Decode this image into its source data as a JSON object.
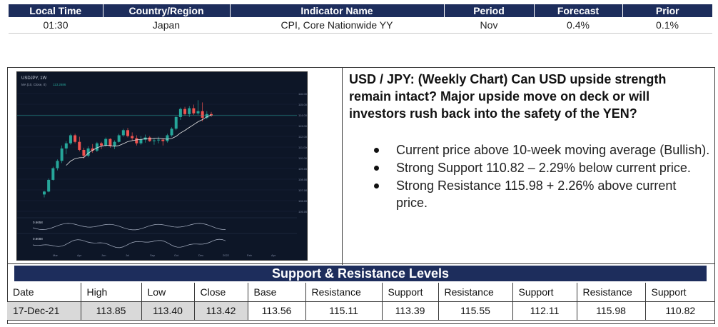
{
  "calendar": {
    "headers": [
      "Local Time",
      "Country/Region",
      "Indicator Name",
      "Period",
      "Forecast",
      "Prior"
    ],
    "row": [
      "01:30",
      "Japan",
      "CPI, Core Nationwide YY",
      "Nov",
      "0.4%",
      "0.1%"
    ]
  },
  "analysis": {
    "headline": "USD / JPY: (Weekly Chart) Can USD upside strength remain intact? Major upside move on deck or will investors rush back into the safety of the YEN?",
    "bullets": [
      "Current price above 10-week moving average (Bullish).",
      "Strong Support 110.82 – 2.29% below current price.",
      "Strong Resistance 115.98 + 2.26% above current price."
    ]
  },
  "chart": {
    "symbol": "USDJPY, 1W",
    "ma_label": "MA (10, Close, 0)",
    "ma_value": "113.2686",
    "osc1_value": "0.6658",
    "osc2_value": "0.8088",
    "x_labels": [
      "Mar",
      "Apr",
      "Jun",
      "Jul",
      "Sep",
      "Oct",
      "Dec",
      "2022",
      "Feb",
      "Apr"
    ],
    "y_labels": [
      "116.000",
      "115.000",
      "114.000",
      "113.000",
      "112.000",
      "111.000",
      "110.000",
      "109.000",
      "108.000",
      "107.000",
      "106.000",
      "105.000"
    ],
    "colors": {
      "up": "#26a69a",
      "down": "#ef5350",
      "bg": "#0d1627",
      "ma": "#e8e8e8"
    },
    "candles": [
      [
        102.6,
        103.1,
        102.2,
        103.0
      ],
      [
        103.0,
        104.8,
        102.9,
        104.6
      ],
      [
        104.6,
        106.4,
        104.5,
        106.2
      ],
      [
        106.2,
        107.4,
        105.9,
        107.2
      ],
      [
        107.2,
        109.3,
        106.9,
        108.9
      ],
      [
        108.9,
        109.9,
        108.1,
        109.6
      ],
      [
        109.6,
        110.9,
        109.4,
        110.7
      ],
      [
        110.7,
        110.9,
        109.6,
        109.8
      ],
      [
        109.8,
        110.5,
        108.5,
        108.7
      ],
      [
        108.7,
        109.0,
        107.5,
        107.9
      ],
      [
        107.9,
        109.2,
        107.7,
        108.9
      ],
      [
        108.9,
        109.5,
        108.3,
        108.6
      ],
      [
        108.6,
        109.8,
        108.4,
        109.6
      ],
      [
        109.6,
        109.8,
        108.8,
        109.3
      ],
      [
        109.3,
        110.4,
        109.1,
        110.2
      ],
      [
        110.2,
        110.3,
        109.0,
        109.2
      ],
      [
        109.2,
        110.0,
        108.8,
        109.8
      ],
      [
        109.8,
        110.9,
        109.7,
        110.7
      ],
      [
        110.7,
        111.6,
        110.5,
        111.4
      ],
      [
        111.4,
        111.7,
        110.4,
        110.6
      ],
      [
        110.6,
        111.1,
        110.0,
        110.3
      ],
      [
        110.3,
        110.7,
        109.3,
        109.6
      ],
      [
        109.6,
        110.6,
        109.4,
        110.1
      ],
      [
        110.1,
        110.8,
        109.7,
        110.4
      ],
      [
        110.4,
        110.6,
        109.8,
        109.9
      ],
      [
        109.9,
        110.3,
        109.4,
        110.0
      ],
      [
        110.0,
        110.5,
        109.6,
        110.1
      ],
      [
        110.1,
        110.3,
        109.3,
        109.9
      ],
      [
        109.9,
        110.9,
        109.7,
        110.7
      ],
      [
        110.7,
        111.8,
        110.5,
        111.6
      ],
      [
        111.6,
        113.3,
        111.4,
        113.2
      ],
      [
        113.2,
        114.5,
        112.8,
        114.3
      ],
      [
        114.3,
        114.6,
        113.4,
        113.6
      ],
      [
        113.6,
        114.7,
        113.2,
        114.4
      ],
      [
        114.4,
        114.9,
        113.5,
        113.7
      ],
      [
        113.7,
        115.5,
        113.5,
        114.0
      ],
      [
        114.0,
        115.2,
        112.6,
        113.1
      ],
      [
        113.1,
        114.0,
        112.9,
        113.6
      ],
      [
        113.6,
        113.9,
        113.2,
        113.4
      ]
    ]
  },
  "sr": {
    "title": "Support & Resistance Levels",
    "headers": [
      "Date",
      "High",
      "Low",
      "Close",
      "Base",
      "Resistance",
      "Support",
      "Resistance",
      "Support",
      "Resistance",
      "Support"
    ],
    "row": [
      "17-Dec-21",
      "113.85",
      "113.40",
      "113.42",
      "113.56",
      "115.11",
      "113.39",
      "115.55",
      "112.11",
      "115.98",
      "110.82"
    ]
  }
}
